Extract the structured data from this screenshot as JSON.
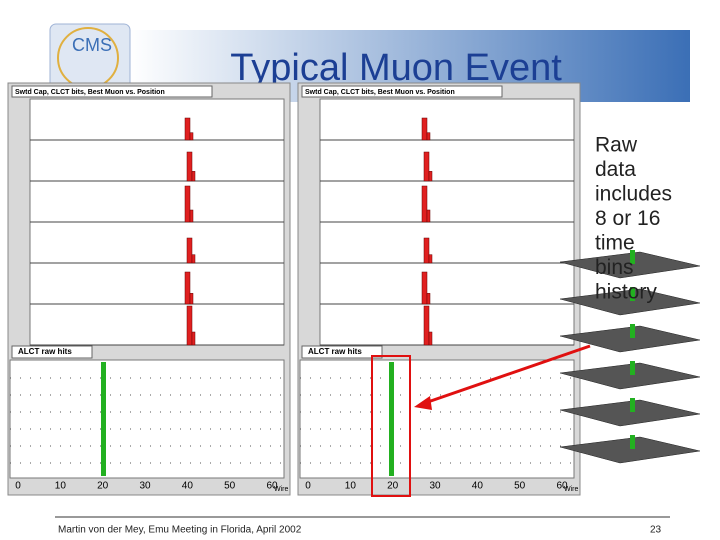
{
  "header": {
    "logo": "CMS",
    "title": "Typical Muon Event"
  },
  "panels": [
    {
      "hist_title": "Swtd Cap, CLCT bits, Best Muon vs. Position",
      "raw_title": "ALCT raw hits",
      "ticks": [
        "0",
        "10",
        "20",
        "30",
        "40",
        "50",
        "60"
      ],
      "axis_label": "Wire"
    },
    {
      "hist_title": "Swtd Cap, CLCT bits, Best Muon vs. Position",
      "raw_title": "ALCT raw hits",
      "ticks": [
        "0",
        "10",
        "20",
        "30",
        "40",
        "50",
        "60"
      ],
      "axis_label": "Wire"
    }
  ],
  "note": {
    "lines": [
      "Raw",
      "data",
      "includes",
      "8 or 16",
      "time",
      "bins",
      "history"
    ]
  },
  "footer": {
    "text": "Martin von der Mey, Emu Meeting in Florida, April 2002",
    "page": "23"
  }
}
